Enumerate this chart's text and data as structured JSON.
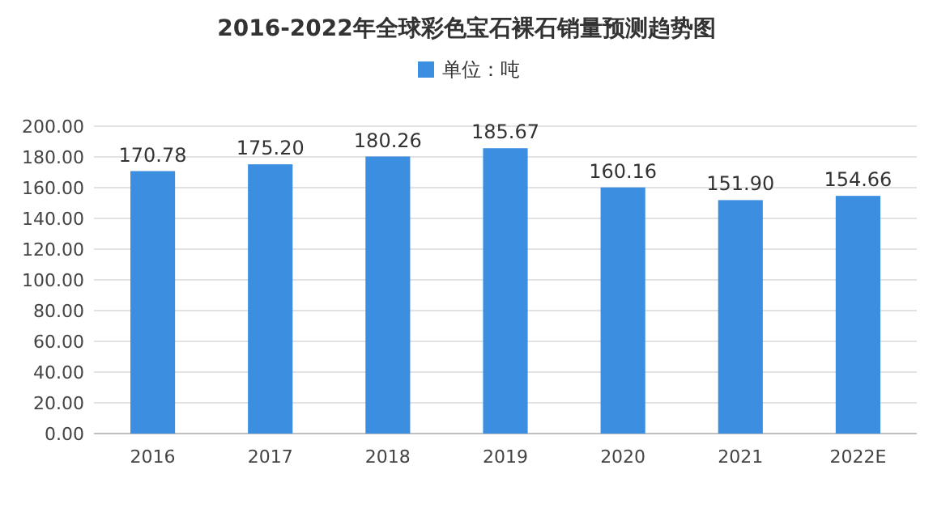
{
  "chart_data": {
    "type": "bar",
    "title": "2016-2022年全球彩色宝石裸石销量预测趋势图",
    "categories": [
      "2016",
      "2017",
      "2018",
      "2019",
      "2020",
      "2021",
      "2022E"
    ],
    "series": [
      {
        "name": "单位：吨",
        "color": "#3c8ee0",
        "values": [
          170.78,
          175.2,
          180.26,
          185.67,
          160.16,
          151.9,
          154.66
        ]
      }
    ],
    "value_labels": [
      "170.78",
      "175.20",
      "180.26",
      "185.67",
      "160.16",
      "151.90",
      "154.66"
    ],
    "ylim": [
      0,
      200
    ],
    "yticks": [
      {
        "value": 0,
        "label": "0.00"
      },
      {
        "value": 20,
        "label": "20.00"
      },
      {
        "value": 40,
        "label": "40.00"
      },
      {
        "value": 60,
        "label": "60.00"
      },
      {
        "value": 80,
        "label": "80.00"
      },
      {
        "value": 100,
        "label": "100.00"
      },
      {
        "value": 120,
        "label": "120.00"
      },
      {
        "value": 140,
        "label": "140.00"
      },
      {
        "value": 160,
        "label": "160.00"
      },
      {
        "value": 180,
        "label": "180.00"
      },
      {
        "value": 200,
        "label": "200.00"
      }
    ],
    "grid": "y",
    "legend": "top"
  }
}
